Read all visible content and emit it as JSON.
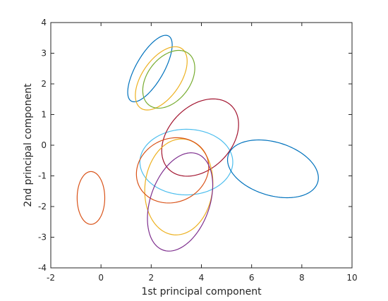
{
  "chart_data": {
    "type": "scatter",
    "title": "",
    "xlabel": "1st principal component",
    "ylabel": "2nd principal component",
    "xlim": [
      -2,
      10
    ],
    "ylim": [
      -4,
      4
    ],
    "xticks": [
      -2,
      0,
      2,
      4,
      6,
      8,
      10
    ],
    "yticks": [
      -4,
      -3,
      -2,
      -1,
      0,
      1,
      2,
      3,
      4
    ],
    "xtick_labels": [
      "-2",
      "0",
      "2",
      "4",
      "6",
      "8",
      "10"
    ],
    "ytick_labels": [
      "-4",
      "-3",
      "-2",
      "-1",
      "0",
      "1",
      "2",
      "3",
      "4"
    ],
    "grid": false,
    "legend": "none",
    "ellipses": [
      {
        "center": [
          1.95,
          2.5
        ],
        "semi_axes": [
          1.3,
          0.52
        ],
        "angle_deg": 53,
        "color": "#0072BD"
      },
      {
        "center": [
          2.4,
          2.18
        ],
        "semi_axes": [
          1.28,
          0.7
        ],
        "angle_deg": 45,
        "color": "#EDB120"
      },
      {
        "center": [
          2.7,
          2.15
        ],
        "semi_axes": [
          1.17,
          0.77
        ],
        "angle_deg": 38,
        "color": "#77AC30"
      },
      {
        "center": [
          -0.4,
          -1.72
        ],
        "semi_axes": [
          0.86,
          0.55
        ],
        "angle_deg": 90,
        "color": "#D95319"
      },
      {
        "center": [
          3.4,
          -0.55
        ],
        "semi_axes": [
          1.85,
          1.07
        ],
        "angle_deg": 0,
        "color": "#4DBEEE"
      },
      {
        "center": [
          3.95,
          0.25
        ],
        "semi_axes": [
          1.65,
          1.1
        ],
        "angle_deg": 30,
        "color": "#A2142F"
      },
      {
        "center": [
          3.1,
          -1.36
        ],
        "semi_axes": [
          1.58,
          1.34
        ],
        "angle_deg": 75,
        "color": "#EDB120"
      },
      {
        "center": [
          2.85,
          -0.82
        ],
        "semi_axes": [
          1.45,
          1.05
        ],
        "angle_deg": 10,
        "color": "#D95319"
      },
      {
        "center": [
          3.15,
          -1.85
        ],
        "semi_axes": [
          1.72,
          1.14
        ],
        "angle_deg": 61,
        "color": "#7E2F8E"
      },
      {
        "center": [
          6.85,
          -0.77
        ],
        "semi_axes": [
          1.84,
          0.88
        ],
        "angle_deg": -12,
        "color": "#0072BD"
      }
    ]
  }
}
